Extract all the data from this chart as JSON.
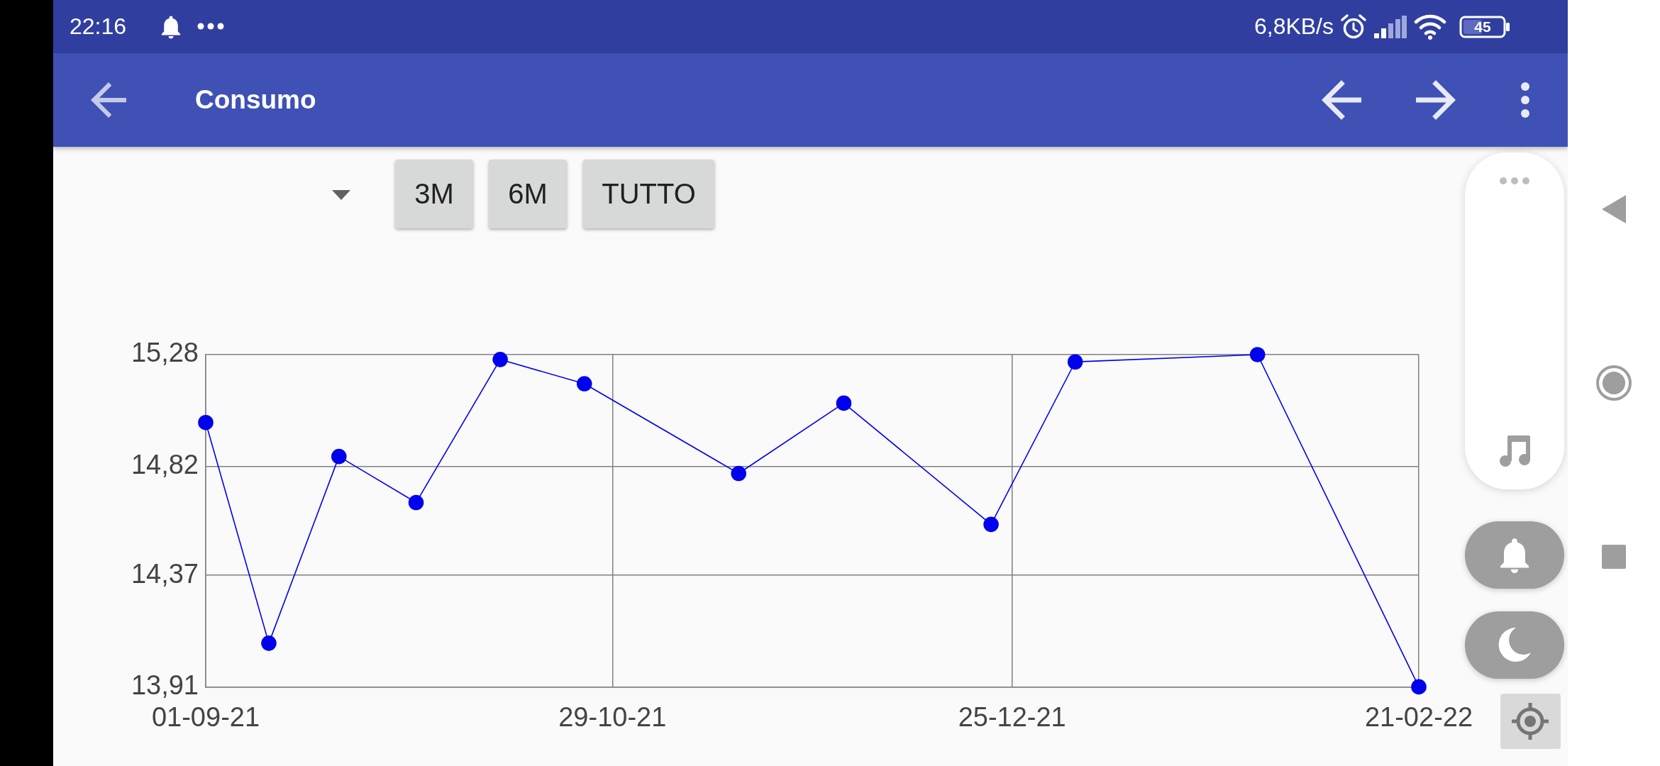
{
  "chart_data": {
    "type": "line",
    "title": "Consumo",
    "annotations": [
      "22:16",
      "6,8KB/s",
      "45",
      "3M",
      "6M",
      "TUTTO"
    ],
    "x": [
      "2021-09-01",
      "2021-09-10",
      "2021-09-20",
      "2021-10-01",
      "2021-10-13",
      "2021-10-25",
      "2021-11-16",
      "2021-12-01",
      "2021-12-22",
      "2022-01-03",
      "2022-01-29",
      "2022-02-21"
    ],
    "values": [
      15.0,
      14.09,
      14.86,
      14.67,
      15.26,
      15.16,
      14.79,
      15.08,
      14.58,
      15.25,
      15.28,
      13.91
    ],
    "color": "#0000ee",
    "xlim": [
      "2021-09-01",
      "2022-02-21"
    ],
    "xticks": [
      {
        "value": "2021-09-01",
        "label": "01-09-21"
      },
      {
        "value": "2021-10-29",
        "label": "29-10-21"
      },
      {
        "value": "2021-12-25",
        "label": "25-12-21"
      },
      {
        "value": "2022-02-21",
        "label": "21-02-22"
      }
    ],
    "ylim": [
      13.91,
      15.28
    ],
    "yticks": [
      {
        "value": 13.91,
        "label": "13,91"
      },
      {
        "value": 14.37,
        "label": "14,37"
      },
      {
        "value": 14.82,
        "label": "14,82"
      },
      {
        "value": 15.28,
        "label": "15,28"
      }
    ],
    "grid": true,
    "marker": "circle",
    "line_style": "solid"
  }
}
